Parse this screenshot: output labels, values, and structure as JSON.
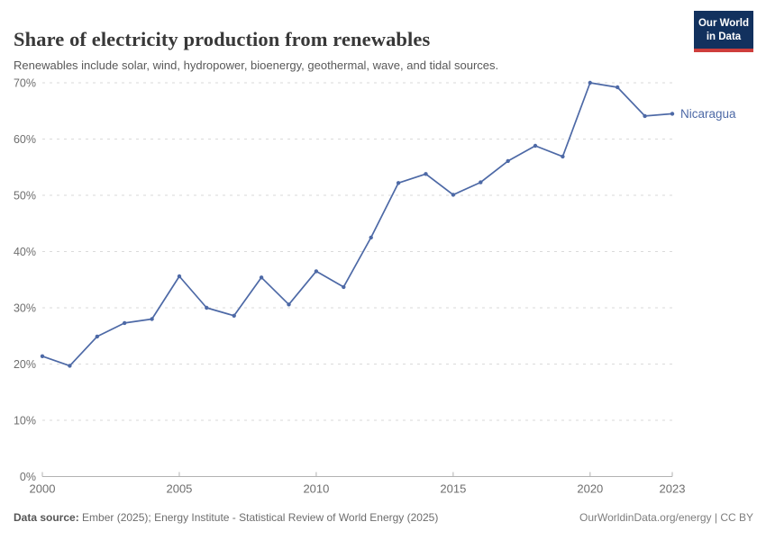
{
  "header": {
    "title": "Share of electricity production from renewables",
    "subtitle": "Renewables include solar, wind, hydropower, bioenergy, geothermal, wave, and tidal sources.",
    "logo": {
      "line1": "Our World",
      "line2": "in Data",
      "bg_color": "#12315E",
      "bar_color": "#CE3E3C"
    }
  },
  "chart_data": {
    "type": "line",
    "title": "Share of electricity production from renewables",
    "x": [
      2000,
      2001,
      2002,
      2003,
      2004,
      2005,
      2006,
      2007,
      2008,
      2009,
      2010,
      2011,
      2012,
      2013,
      2014,
      2015,
      2016,
      2017,
      2018,
      2019,
      2020,
      2021,
      2022,
      2023
    ],
    "series": [
      {
        "name": "Nicaragua",
        "color": "#4D69A6",
        "values": [
          21.4,
          19.7,
          24.9,
          27.3,
          28.0,
          35.6,
          30.0,
          28.6,
          35.4,
          30.6,
          36.5,
          33.7,
          42.5,
          52.2,
          53.8,
          50.1,
          52.3,
          56.1,
          58.8,
          56.9,
          70.0,
          69.2,
          64.1,
          64.5
        ]
      }
    ],
    "ylabel": "",
    "xlabel": "",
    "ylim": [
      0,
      70
    ],
    "yticks": [
      0,
      10,
      20,
      30,
      40,
      50,
      60,
      70
    ],
    "ytick_suffix": "%",
    "xticks": [
      2000,
      2005,
      2010,
      2015,
      2020,
      2023
    ],
    "grid": "horizontal-dashed",
    "legend_position": "end-of-line"
  },
  "footer": {
    "source_label": "Data source:",
    "source_text": " Ember (2025); Energy Institute - Statistical Review of World Energy (2025)",
    "right_text": "OurWorldinData.org/energy | CC BY"
  }
}
